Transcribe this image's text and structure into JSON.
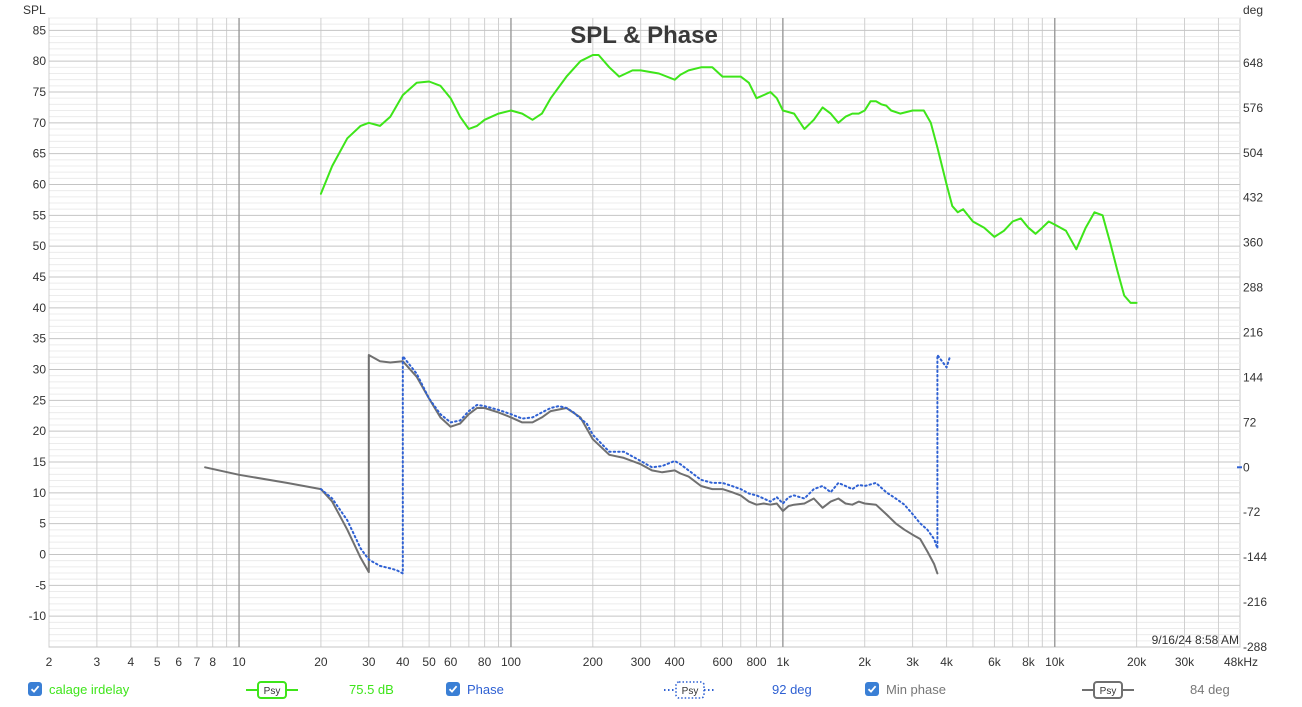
{
  "chart_data": {
    "type": "line",
    "title": "SPL & Phase",
    "left_axis": {
      "label": "SPL",
      "min": -15,
      "max": 87,
      "ticks": [
        -10,
        -5,
        0,
        5,
        10,
        15,
        20,
        25,
        30,
        35,
        40,
        45,
        50,
        55,
        60,
        65,
        70,
        75,
        80,
        85
      ]
    },
    "right_axis": {
      "label": "deg",
      "min": -288,
      "max": 720,
      "ticks": [
        -288,
        -216,
        -144,
        -72,
        0,
        72,
        144,
        216,
        288,
        360,
        432,
        504,
        576,
        648
      ]
    },
    "x_axis": {
      "scale": "log",
      "unit": "Hz",
      "min": 2,
      "max": 48000,
      "tick_values": [
        2,
        3,
        4,
        5,
        6,
        7,
        8,
        10,
        20,
        30,
        40,
        50,
        60,
        80,
        100,
        200,
        300,
        400,
        600,
        800,
        1000,
        2000,
        3000,
        4000,
        6000,
        8000,
        10000,
        20000,
        30000,
        48000
      ],
      "tick_labels": [
        "2",
        "3",
        "4",
        "5",
        "6",
        "7",
        "8",
        "10",
        "20",
        "30",
        "40",
        "50",
        "60",
        "80",
        "100",
        "200",
        "300",
        "400",
        "600",
        "800",
        "1k",
        "2k",
        "3k",
        "4k",
        "6k",
        "8k",
        "10k",
        "20k",
        "30k",
        "48kHz"
      ]
    },
    "grid": true,
    "timestamp": "9/16/24 8:58 AM",
    "series": [
      {
        "name": "calage irdelay",
        "axis": "left",
        "color": "#3ee51a",
        "style": "solid",
        "value_text": "75.5 dB",
        "x": [
          20,
          22,
          25,
          28,
          30,
          33,
          36,
          40,
          45,
          50,
          55,
          60,
          65,
          70,
          75,
          80,
          90,
          100,
          110,
          120,
          130,
          140,
          160,
          180,
          200,
          210,
          230,
          250,
          280,
          300,
          350,
          400,
          420,
          450,
          500,
          550,
          600,
          650,
          700,
          750,
          800,
          850,
          900,
          950,
          1000,
          1100,
          1200,
          1300,
          1400,
          1500,
          1600,
          1700,
          1800,
          1900,
          2000,
          2100,
          2200,
          2300,
          2400,
          2500,
          2700,
          3000,
          3300,
          3500,
          3700,
          4000,
          4200,
          4400,
          4600,
          5000,
          5500,
          6000,
          6500,
          7000,
          7500,
          8000,
          8500,
          9000,
          9500,
          10000,
          11000,
          12000,
          13000,
          14000,
          15000,
          16000,
          17000,
          18000,
          19000,
          20000
        ],
        "y": [
          58.5,
          63,
          67.5,
          69.5,
          70,
          69.5,
          71,
          74.5,
          76.5,
          76.7,
          76,
          74,
          71,
          69,
          69.5,
          70.5,
          71.5,
          72,
          71.5,
          70.5,
          71.5,
          74,
          77.5,
          80,
          81,
          81,
          79,
          77.5,
          78.5,
          78.5,
          78,
          77,
          77.8,
          78.5,
          79,
          79,
          77.5,
          77.5,
          77.5,
          76.5,
          74,
          74.5,
          75,
          74,
          72,
          71.5,
          69,
          70.5,
          72.5,
          71.5,
          70,
          71,
          71.5,
          71.5,
          72,
          73.5,
          73.5,
          73,
          72.8,
          72,
          71.5,
          72,
          72,
          70,
          66,
          60,
          56.5,
          55.5,
          56,
          54,
          53,
          51.5,
          52.5,
          54,
          54.5,
          53,
          52,
          53,
          54,
          53.5,
          52.5,
          49.5,
          53,
          55.5,
          55,
          50.5,
          46,
          42,
          40.8,
          40.8
        ]
      },
      {
        "name": "Phase",
        "axis": "right",
        "color": "#2f61d3",
        "style": "dotted",
        "value_text": "92 deg",
        "x": [
          20,
          22,
          25,
          28,
          30,
          33,
          36,
          38,
          40,
          40,
          45,
          50,
          55,
          60,
          65,
          70,
          75,
          80,
          90,
          100,
          110,
          120,
          130,
          140,
          150,
          160,
          170,
          180,
          190,
          200,
          230,
          260,
          300,
          330,
          360,
          400,
          420,
          450,
          500,
          550,
          600,
          650,
          700,
          750,
          800,
          850,
          900,
          950,
          1000,
          1050,
          1100,
          1200,
          1300,
          1400,
          1500,
          1600,
          1700,
          1800,
          1900,
          2000,
          2200,
          2400,
          2600,
          2800,
          3000,
          3200,
          3400,
          3600,
          3700,
          3700,
          4000,
          4100
        ],
        "y": [
          -35,
          -50,
          -85,
          -130,
          -148,
          -158,
          -162,
          -165,
          -170,
          178,
          150,
          110,
          85,
          72,
          75,
          90,
          100,
          98,
          92,
          85,
          78,
          80,
          88,
          95,
          98,
          95,
          88,
          78,
          70,
          52,
          25,
          25,
          10,
          0,
          2,
          10,
          5,
          -5,
          -20,
          -25,
          -25,
          -30,
          -35,
          -42,
          -45,
          -50,
          -55,
          -48,
          -58,
          -48,
          -45,
          -50,
          -35,
          -30,
          -40,
          -25,
          -30,
          -35,
          -28,
          -30,
          -25,
          -40,
          -50,
          -60,
          -75,
          -90,
          -100,
          -115,
          -130,
          180,
          160,
          175
        ]
      },
      {
        "name": "Min phase",
        "axis": "right",
        "color": "#707070",
        "style": "solid",
        "value_text": "84 deg",
        "x": [
          7.5,
          10,
          15,
          20,
          22,
          25,
          28,
          30,
          30,
          33,
          36,
          40,
          45,
          50,
          55,
          60,
          65,
          70,
          75,
          80,
          90,
          100,
          110,
          120,
          130,
          140,
          160,
          180,
          200,
          230,
          260,
          300,
          330,
          360,
          400,
          420,
          450,
          500,
          550,
          600,
          650,
          700,
          750,
          800,
          850,
          900,
          950,
          1000,
          1050,
          1100,
          1200,
          1300,
          1400,
          1500,
          1600,
          1700,
          1800,
          1900,
          2000,
          2200,
          2400,
          2600,
          2800,
          3000,
          3200,
          3400,
          3600,
          3700
        ],
        "y": [
          0,
          -12,
          -25,
          -35,
          -55,
          -100,
          -145,
          -168,
          180,
          170,
          168,
          170,
          145,
          110,
          80,
          65,
          70,
          85,
          95,
          95,
          88,
          80,
          72,
          72,
          80,
          90,
          95,
          80,
          45,
          20,
          15,
          5,
          -5,
          -8,
          -5,
          -10,
          -15,
          -30,
          -35,
          -35,
          -40,
          -45,
          -55,
          -60,
          -58,
          -60,
          -58,
          -70,
          -62,
          -60,
          -58,
          -50,
          -65,
          -55,
          -50,
          -58,
          -60,
          -55,
          -58,
          -60,
          -75,
          -90,
          -100,
          -108,
          -115,
          -135,
          -155,
          -170
        ]
      }
    ]
  },
  "legend": {
    "calage": {
      "label": "calage irdelay",
      "sample": "Psy",
      "value": "75.5 dB"
    },
    "phase": {
      "label": "Phase",
      "sample": "Psy",
      "value": "92 deg"
    },
    "minphase": {
      "label": "Min phase",
      "sample": "Psy",
      "value": "84 deg"
    }
  },
  "colors": {
    "spl": "#3ee51a",
    "phase": "#2f61d3",
    "minphase": "#707070",
    "checkbox": "#3a7fd5"
  }
}
